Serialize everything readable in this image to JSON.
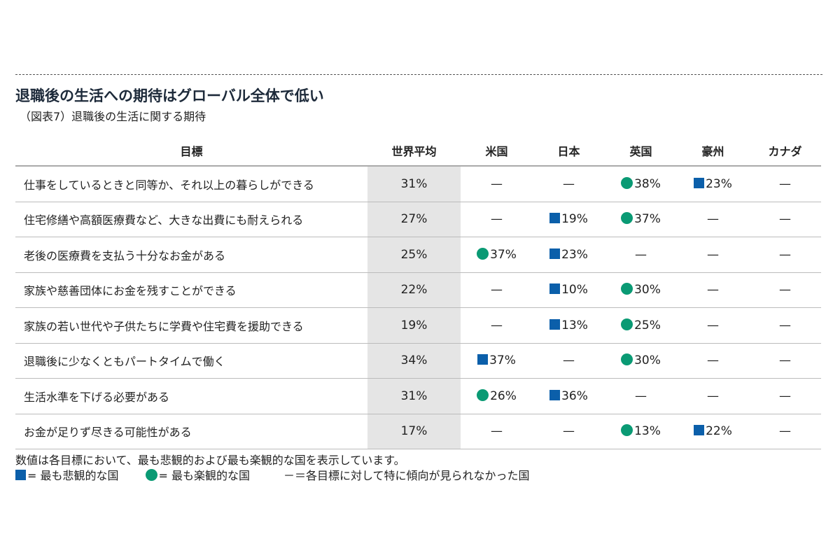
{
  "title": "退職後の生活への期待はグローバル全体で低い",
  "subtitle": "（図表7）退職後の生活に関する期待",
  "colors": {
    "pessimistic": "#0b5faa",
    "optimistic": "#0a9a74",
    "avg_bg": "#e5e5e5"
  },
  "table": {
    "headers": [
      "目標",
      "世界平均",
      "米国",
      "日本",
      "英国",
      "豪州",
      "カナダ"
    ],
    "rows": [
      {
        "goal": "仕事をしているときと同等か、それ以上の暮らしができる",
        "avg": "31%",
        "cells": [
          {
            "mark": "none",
            "value": "—"
          },
          {
            "mark": "none",
            "value": "—"
          },
          {
            "mark": "circle",
            "value": "38%"
          },
          {
            "mark": "square",
            "value": "23%"
          },
          {
            "mark": "none",
            "value": "—"
          }
        ]
      },
      {
        "goal": "住宅修繕や高額医療費など、大きな出費にも耐えられる",
        "avg": "27%",
        "cells": [
          {
            "mark": "none",
            "value": "—"
          },
          {
            "mark": "square",
            "value": "19%"
          },
          {
            "mark": "circle",
            "value": "37%"
          },
          {
            "mark": "none",
            "value": "—"
          },
          {
            "mark": "none",
            "value": "—"
          }
        ]
      },
      {
        "goal": "老後の医療費を支払う十分なお金がある",
        "avg": "25%",
        "cells": [
          {
            "mark": "circle",
            "value": "37%"
          },
          {
            "mark": "square",
            "value": "23%"
          },
          {
            "mark": "none",
            "value": "—"
          },
          {
            "mark": "none",
            "value": "—"
          },
          {
            "mark": "none",
            "value": "—"
          }
        ]
      },
      {
        "goal": "家族や慈善団体にお金を残すことができる",
        "avg": "22%",
        "cells": [
          {
            "mark": "none",
            "value": "—"
          },
          {
            "mark": "square",
            "value": "10%"
          },
          {
            "mark": "circle",
            "value": "30%"
          },
          {
            "mark": "none",
            "value": "—"
          },
          {
            "mark": "none",
            "value": "—"
          }
        ]
      },
      {
        "goal": "家族の若い世代や子供たちに学費や住宅費を援助できる",
        "avg": "19%",
        "cells": [
          {
            "mark": "none",
            "value": "—"
          },
          {
            "mark": "square",
            "value": "13%"
          },
          {
            "mark": "circle",
            "value": "25%"
          },
          {
            "mark": "none",
            "value": "—"
          },
          {
            "mark": "none",
            "value": "—"
          }
        ]
      },
      {
        "goal": "退職後に少なくともパートタイムで働く",
        "avg": "34%",
        "cells": [
          {
            "mark": "square",
            "value": "37%"
          },
          {
            "mark": "none",
            "value": "—"
          },
          {
            "mark": "circle",
            "value": "30%"
          },
          {
            "mark": "none",
            "value": "—"
          },
          {
            "mark": "none",
            "value": "—"
          }
        ]
      },
      {
        "goal": "生活水準を下げる必要がある",
        "avg": "31%",
        "cells": [
          {
            "mark": "circle",
            "value": "26%"
          },
          {
            "mark": "square",
            "value": "36%"
          },
          {
            "mark": "none",
            "value": "—"
          },
          {
            "mark": "none",
            "value": "—"
          },
          {
            "mark": "none",
            "value": "—"
          }
        ]
      },
      {
        "goal": "お金が足りず尽きる可能性がある",
        "avg": "17%",
        "cells": [
          {
            "mark": "none",
            "value": "—"
          },
          {
            "mark": "none",
            "value": "—"
          },
          {
            "mark": "circle",
            "value": "13%"
          },
          {
            "mark": "square",
            "value": "22%"
          },
          {
            "mark": "none",
            "value": "—"
          }
        ]
      }
    ]
  },
  "note": "数値は各目標において、最も悲観的および最も楽観的な国を表示しています。",
  "legend": {
    "pessimistic": "= 最も悲観的な国",
    "optimistic": "= 最も楽観的な国",
    "none": "－＝各目標に対して特に傾向が見られなかった国"
  }
}
